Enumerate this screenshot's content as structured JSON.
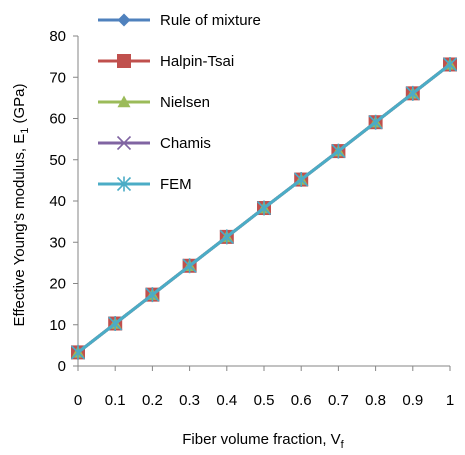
{
  "chart_data": {
    "type": "line",
    "xlabel": "Fiber volume fraction, V",
    "xlabel_sub": "f",
    "ylabel": "Effective Young's modulus, E",
    "ylabel_sub": "1",
    "ylabel_unit": " (GPa)",
    "xlim": [
      0,
      1
    ],
    "ylim": [
      0,
      80
    ],
    "x": [
      0,
      0.1,
      0.2,
      0.3,
      0.4,
      0.5,
      0.6,
      0.7,
      0.8,
      0.9,
      1
    ],
    "x_tick_labels": [
      "0",
      "0.1",
      "0.2",
      "0.3",
      "0.4",
      "0.5",
      "0.6",
      "0.7",
      "0.8",
      "0.9",
      "1"
    ],
    "y_ticks": [
      0,
      10,
      20,
      30,
      40,
      50,
      60,
      70,
      80
    ],
    "y_tick_labels": [
      "0",
      "10",
      "20",
      "30",
      "40",
      "50",
      "60",
      "70",
      "80"
    ],
    "grid": false,
    "legend_position": "top-left",
    "series": [
      {
        "name": "Rule of mixture",
        "color": "#4F81BD",
        "marker": "diamond",
        "values": [
          3.3,
          10.3,
          17.3,
          24.3,
          31.3,
          38.3,
          45.2,
          52.1,
          59.1,
          66.1,
          73.1
        ]
      },
      {
        "name": "Halpin-Tsai",
        "color": "#C0504D",
        "marker": "square",
        "values": [
          3.3,
          10.3,
          17.3,
          24.3,
          31.3,
          38.3,
          45.2,
          52.1,
          59.1,
          66.1,
          73.1
        ]
      },
      {
        "name": "Nielsen",
        "color": "#9BBB59",
        "marker": "triangle",
        "values": [
          3.3,
          10.3,
          17.3,
          24.3,
          31.3,
          38.3,
          45.2,
          52.1,
          59.1,
          66.1,
          73.1
        ]
      },
      {
        "name": "Chamis",
        "color": "#8064A2",
        "marker": "x",
        "values": [
          3.3,
          10.3,
          17.3,
          24.3,
          31.3,
          38.3,
          45.2,
          52.1,
          59.1,
          66.1,
          73.1
        ]
      },
      {
        "name": "FEM",
        "color": "#4BACC6",
        "marker": "star",
        "values": [
          3.3,
          10.3,
          17.3,
          24.3,
          31.3,
          38.3,
          45.2,
          52.1,
          59.1,
          66.1,
          73.1
        ]
      }
    ]
  }
}
